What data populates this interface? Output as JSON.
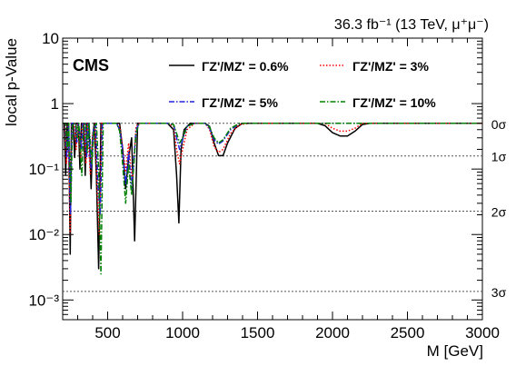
{
  "chart_data": {
    "type": "line",
    "title": "",
    "top_right_label": "36.3 fb⁻¹ (13 TeV, μ⁺μ⁻)",
    "experiment_label": "CMS",
    "xlabel": "M [GeV]",
    "ylabel": "local p-Value",
    "xlim": [
      200,
      3000
    ],
    "ylim": [
      0.0005,
      10
    ],
    "yscale": "log",
    "x_ticks": [
      500,
      1000,
      1500,
      2000,
      2500,
      3000
    ],
    "x_tick_labels": [
      "500",
      "1000",
      "1500",
      "2000",
      "2500",
      "3000"
    ],
    "y_ticks": [
      0.001,
      0.01,
      0.1,
      1,
      10
    ],
    "y_tick_labels": [
      "10⁻³",
      "10⁻²",
      "10⁻¹",
      "1",
      "10"
    ],
    "sigma_lines": [
      {
        "label": "0σ",
        "value": 0.5
      },
      {
        "label": "1σ",
        "value": 0.1587
      },
      {
        "label": "2σ",
        "value": 0.02275
      },
      {
        "label": "3σ",
        "value": 0.00135
      }
    ],
    "legend_position": "top",
    "series": [
      {
        "name": "ΓZ'/MZ' = 0.6%",
        "color": "#000000",
        "style": "solid",
        "points": [
          [
            200,
            0.5
          ],
          [
            210,
            0.5
          ],
          [
            220,
            0.08
          ],
          [
            230,
            0.5
          ],
          [
            240,
            0.5
          ],
          [
            250,
            0.005
          ],
          [
            258,
            0.5
          ],
          [
            270,
            0.5
          ],
          [
            280,
            0.15
          ],
          [
            290,
            0.5
          ],
          [
            305,
            0.5
          ],
          [
            315,
            0.1
          ],
          [
            325,
            0.5
          ],
          [
            340,
            0.5
          ],
          [
            350,
            0.08
          ],
          [
            360,
            0.5
          ],
          [
            375,
            0.5
          ],
          [
            390,
            0.05
          ],
          [
            400,
            0.3
          ],
          [
            410,
            0.5
          ],
          [
            425,
            0.08
          ],
          [
            440,
            0.003
          ],
          [
            455,
            0.5
          ],
          [
            480,
            0.5
          ],
          [
            500,
            0.5
          ],
          [
            560,
            0.5
          ],
          [
            580,
            0.5
          ],
          [
            600,
            0.2
          ],
          [
            620,
            0.05
          ],
          [
            640,
            0.15
          ],
          [
            660,
            0.3
          ],
          [
            680,
            0.008
          ],
          [
            700,
            0.5
          ],
          [
            720,
            0.5
          ],
          [
            800,
            0.5
          ],
          [
            900,
            0.5
          ],
          [
            940,
            0.4
          ],
          [
            960,
            0.08
          ],
          [
            975,
            0.015
          ],
          [
            990,
            0.2
          ],
          [
            1010,
            0.4
          ],
          [
            1050,
            0.5
          ],
          [
            1100,
            0.5
          ],
          [
            1150,
            0.5
          ],
          [
            1180,
            0.45
          ],
          [
            1210,
            0.25
          ],
          [
            1240,
            0.16
          ],
          [
            1270,
            0.16
          ],
          [
            1300,
            0.25
          ],
          [
            1350,
            0.42
          ],
          [
            1400,
            0.5
          ],
          [
            1500,
            0.5
          ],
          [
            1900,
            0.5
          ],
          [
            1950,
            0.46
          ],
          [
            2000,
            0.36
          ],
          [
            2050,
            0.32
          ],
          [
            2100,
            0.32
          ],
          [
            2150,
            0.38
          ],
          [
            2200,
            0.48
          ],
          [
            2250,
            0.5
          ],
          [
            3000,
            0.5
          ]
        ]
      },
      {
        "name": "ΓZ'/MZ' = 3%",
        "color": "#ff0000",
        "style": "dotted",
        "points": [
          [
            200,
            0.5
          ],
          [
            215,
            0.5
          ],
          [
            225,
            0.12
          ],
          [
            235,
            0.5
          ],
          [
            250,
            0.01
          ],
          [
            260,
            0.5
          ],
          [
            280,
            0.5
          ],
          [
            290,
            0.2
          ],
          [
            300,
            0.5
          ],
          [
            320,
            0.15
          ],
          [
            330,
            0.5
          ],
          [
            345,
            0.5
          ],
          [
            355,
            0.12
          ],
          [
            365,
            0.5
          ],
          [
            385,
            0.08
          ],
          [
            400,
            0.35
          ],
          [
            415,
            0.5
          ],
          [
            430,
            0.05
          ],
          [
            445,
            0.01
          ],
          [
            460,
            0.5
          ],
          [
            560,
            0.5
          ],
          [
            580,
            0.45
          ],
          [
            600,
            0.22
          ],
          [
            620,
            0.09
          ],
          [
            640,
            0.25
          ],
          [
            665,
            0.06
          ],
          [
            690,
            0.45
          ],
          [
            710,
            0.5
          ],
          [
            900,
            0.5
          ],
          [
            940,
            0.45
          ],
          [
            960,
            0.2
          ],
          [
            980,
            0.12
          ],
          [
            1000,
            0.2
          ],
          [
            1030,
            0.4
          ],
          [
            1080,
            0.5
          ],
          [
            1150,
            0.5
          ],
          [
            1180,
            0.4
          ],
          [
            1210,
            0.22
          ],
          [
            1240,
            0.18
          ],
          [
            1270,
            0.2
          ],
          [
            1320,
            0.35
          ],
          [
            1380,
            0.48
          ],
          [
            1450,
            0.5
          ],
          [
            1950,
            0.5
          ],
          [
            2000,
            0.42
          ],
          [
            2050,
            0.38
          ],
          [
            2100,
            0.38
          ],
          [
            2150,
            0.42
          ],
          [
            2200,
            0.5
          ],
          [
            3000,
            0.5
          ]
        ]
      },
      {
        "name": "ΓZ'/MZ' = 5%",
        "color": "#2222dd",
        "style": "dashdot",
        "points": [
          [
            200,
            0.5
          ],
          [
            218,
            0.5
          ],
          [
            228,
            0.15
          ],
          [
            238,
            0.5
          ],
          [
            252,
            0.02
          ],
          [
            262,
            0.5
          ],
          [
            285,
            0.5
          ],
          [
            295,
            0.25
          ],
          [
            305,
            0.5
          ],
          [
            325,
            0.2
          ],
          [
            335,
            0.5
          ],
          [
            350,
            0.5
          ],
          [
            360,
            0.15
          ],
          [
            370,
            0.5
          ],
          [
            390,
            0.1
          ],
          [
            405,
            0.4
          ],
          [
            420,
            0.5
          ],
          [
            435,
            0.06
          ],
          [
            450,
            0.02
          ],
          [
            465,
            0.5
          ],
          [
            560,
            0.5
          ],
          [
            580,
            0.4
          ],
          [
            600,
            0.2
          ],
          [
            620,
            0.06
          ],
          [
            640,
            0.18
          ],
          [
            660,
            0.05
          ],
          [
            690,
            0.4
          ],
          [
            710,
            0.5
          ],
          [
            900,
            0.5
          ],
          [
            940,
            0.48
          ],
          [
            960,
            0.3
          ],
          [
            980,
            0.2
          ],
          [
            1000,
            0.28
          ],
          [
            1030,
            0.45
          ],
          [
            1080,
            0.5
          ],
          [
            1150,
            0.5
          ],
          [
            1180,
            0.42
          ],
          [
            1210,
            0.28
          ],
          [
            1240,
            0.24
          ],
          [
            1270,
            0.27
          ],
          [
            1320,
            0.4
          ],
          [
            1380,
            0.5
          ],
          [
            3000,
            0.5
          ]
        ]
      },
      {
        "name": "ΓZ'/MZ' = 10%",
        "color": "#008000",
        "style": "dashdot",
        "points": [
          [
            200,
            0.5
          ],
          [
            220,
            0.5
          ],
          [
            230,
            0.2
          ],
          [
            240,
            0.5
          ],
          [
            255,
            0.03
          ],
          [
            265,
            0.5
          ],
          [
            288,
            0.5
          ],
          [
            298,
            0.3
          ],
          [
            308,
            0.5
          ],
          [
            328,
            0.08
          ],
          [
            340,
            0.5
          ],
          [
            355,
            0.5
          ],
          [
            365,
            0.18
          ],
          [
            375,
            0.5
          ],
          [
            395,
            0.12
          ],
          [
            410,
            0.45
          ],
          [
            425,
            0.5
          ],
          [
            440,
            0.1
          ],
          [
            455,
            0.0025
          ],
          [
            470,
            0.5
          ],
          [
            560,
            0.5
          ],
          [
            580,
            0.38
          ],
          [
            600,
            0.12
          ],
          [
            620,
            0.03
          ],
          [
            640,
            0.12
          ],
          [
            660,
            0.04
          ],
          [
            690,
            0.35
          ],
          [
            710,
            0.5
          ],
          [
            900,
            0.5
          ],
          [
            940,
            0.48
          ],
          [
            960,
            0.35
          ],
          [
            980,
            0.25
          ],
          [
            1000,
            0.3
          ],
          [
            1030,
            0.45
          ],
          [
            1080,
            0.5
          ],
          [
            1150,
            0.5
          ],
          [
            1180,
            0.44
          ],
          [
            1210,
            0.3
          ],
          [
            1240,
            0.25
          ],
          [
            1270,
            0.28
          ],
          [
            1320,
            0.42
          ],
          [
            1380,
            0.5
          ],
          [
            3000,
            0.5
          ]
        ]
      }
    ]
  }
}
